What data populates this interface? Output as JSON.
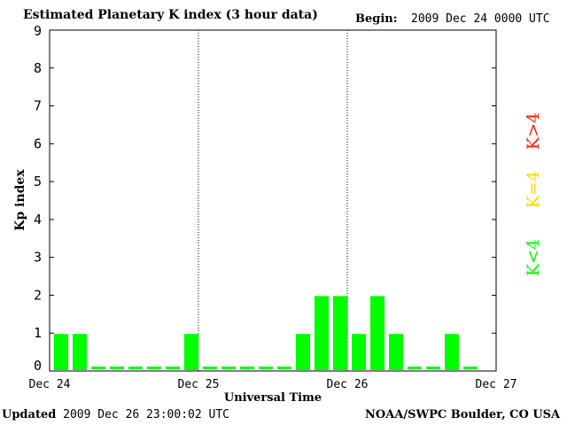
{
  "header": {
    "title": "Estimated Planetary K index (3 hour data)",
    "begin_label": "Begin:",
    "begin_value": "2009 Dec 24 0000 UTC"
  },
  "footer": {
    "updated_label": "Updated",
    "updated_value": "2009 Dec 26 23:00:02 UTC",
    "source": "NOAA/SWPC Boulder, CO USA"
  },
  "legend": [
    {
      "label": "K<4",
      "color": "#00ff00"
    },
    {
      "label": "K=4",
      "color": "#ffd700"
    },
    {
      "label": "K>4",
      "color": "#ff2200"
    }
  ],
  "chart_data": {
    "type": "bar",
    "title": "Estimated Planetary K index (3 hour data)",
    "xlabel": "Universal Time",
    "ylabel": "Kp index",
    "ylim": [
      0,
      9
    ],
    "yticks": [
      0,
      1,
      2,
      3,
      4,
      5,
      6,
      7,
      8,
      9
    ],
    "x_tick_labels": [
      "Dec 24",
      "Dec 25",
      "Dec 26",
      "Dec 27"
    ],
    "interval_hours": 3,
    "series": [
      {
        "values": [
          1,
          1,
          0,
          0,
          0,
          0,
          0,
          1,
          0,
          0,
          0,
          0,
          0,
          1,
          2,
          2,
          1,
          2,
          1,
          0,
          0,
          1,
          0
        ],
        "color": "#00ff00"
      }
    ],
    "grid": false,
    "day_separators": "dotted"
  }
}
